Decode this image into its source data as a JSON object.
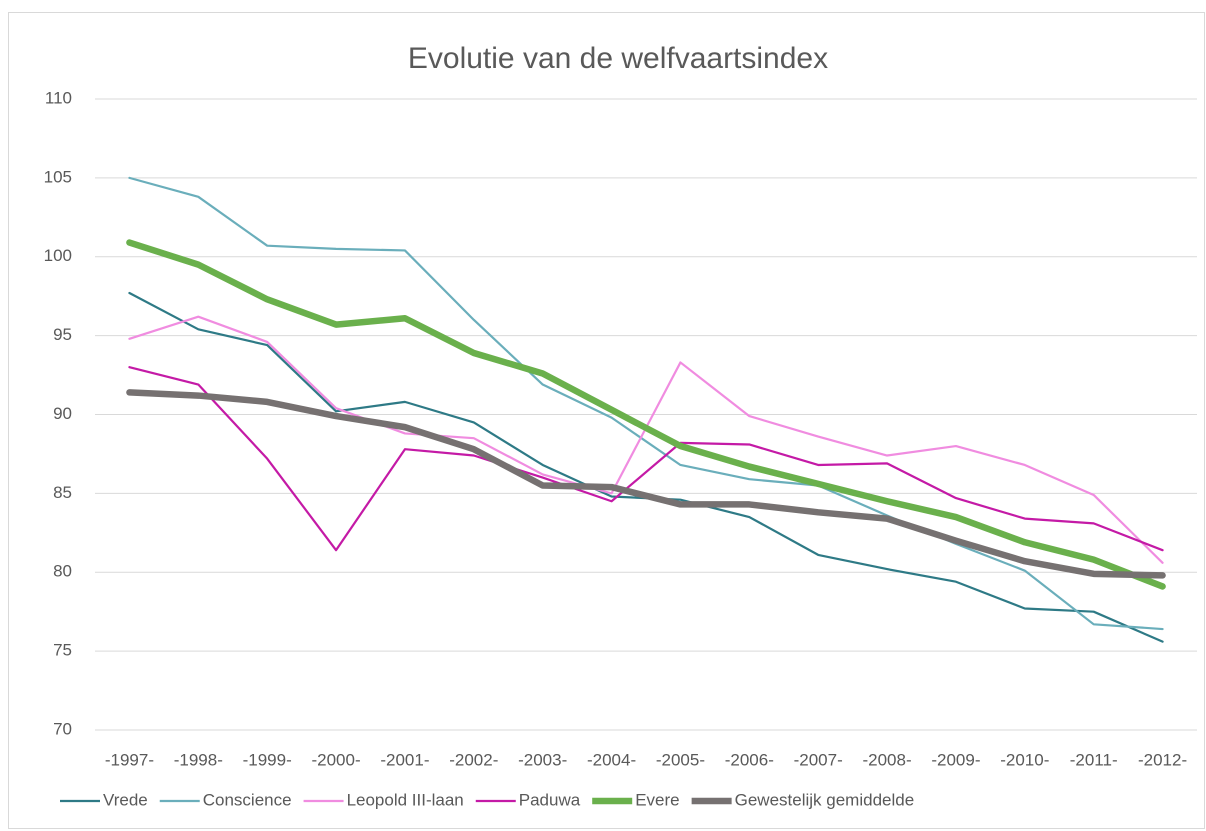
{
  "chart_data": {
    "type": "line",
    "title": "Evolutie van de welfvaartsindex",
    "categories": [
      "-1997-",
      "-1998-",
      "-1999-",
      "-2000-",
      "-2001-",
      "-2002-",
      "-2003-",
      "-2004-",
      "-2005-",
      "-2006-",
      "-2007-",
      "-2008-",
      "-2009-",
      "-2010-",
      "-2011-",
      "-2012-"
    ],
    "series": [
      {
        "name": "Vrede",
        "color": "#2e7a86",
        "values": [
          97.7,
          95.4,
          94.4,
          90.2,
          90.8,
          89.5,
          86.8,
          84.8,
          84.6,
          83.5,
          81.1,
          80.2,
          79.4,
          77.7,
          77.5,
          75.6
        ]
      },
      {
        "name": "Conscience",
        "color": "#6aaebb",
        "values": [
          105.0,
          103.8,
          100.7,
          100.5,
          100.4,
          96.0,
          91.9,
          89.8,
          86.8,
          85.9,
          85.5,
          83.6,
          81.8,
          80.1,
          76.7,
          76.4
        ]
      },
      {
        "name": "Leopold III-laan",
        "color": "#f08ce0",
        "values": [
          94.8,
          96.2,
          94.6,
          90.4,
          88.8,
          88.5,
          86.2,
          85.0,
          93.3,
          89.9,
          88.6,
          87.4,
          88.0,
          86.8,
          84.9,
          80.6
        ]
      },
      {
        "name": "Paduwa",
        "color": "#c41aa6",
        "values": [
          93.0,
          91.9,
          87.2,
          81.4,
          87.8,
          87.4,
          86.0,
          84.5,
          88.2,
          88.1,
          86.8,
          86.9,
          84.7,
          83.4,
          83.1,
          81.4
        ]
      },
      {
        "name": "Evere",
        "color": "#6ab04c",
        "values": [
          100.9,
          99.5,
          97.3,
          95.7,
          96.1,
          93.9,
          92.6,
          90.3,
          88.0,
          86.7,
          85.6,
          84.5,
          83.5,
          81.9,
          80.8,
          79.1
        ]
      },
      {
        "name": "Gewestelijk gemiddelde",
        "color": "#767171",
        "values": [
          91.4,
          91.2,
          90.8,
          89.9,
          89.2,
          87.8,
          85.5,
          85.4,
          84.3,
          84.3,
          83.8,
          83.4,
          82.0,
          80.7,
          79.9,
          79.8
        ]
      }
    ],
    "ylim": [
      70,
      110
    ],
    "yticks": [
      70,
      75,
      80,
      85,
      90,
      95,
      100,
      105,
      110
    ],
    "grid": true,
    "legend": "bottom"
  }
}
